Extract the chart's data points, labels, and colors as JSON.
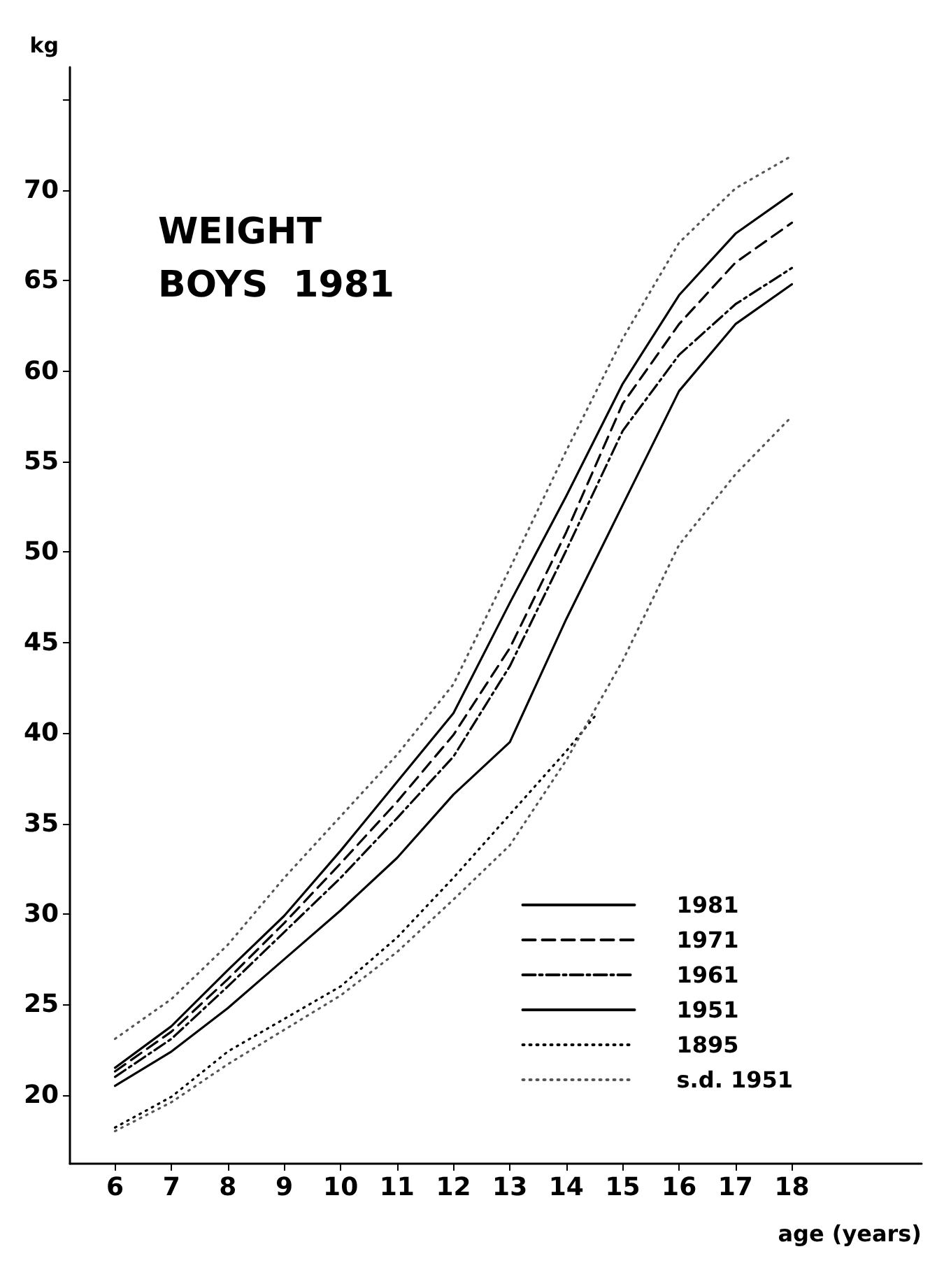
{
  "chart_data": {
    "type": "line",
    "title": "WEIGHT",
    "subtitle": "BOYS  1981",
    "xlabel": "age (years)",
    "ylabel": "kg",
    "x": [
      6,
      7,
      8,
      9,
      10,
      11,
      12,
      13,
      14,
      15,
      16,
      17,
      18
    ],
    "xlim": [
      5.2,
      20.3
    ],
    "xticks": [
      6,
      7,
      8,
      9,
      10,
      11,
      12,
      13,
      14,
      15,
      16,
      17,
      18
    ],
    "ylim": [
      16.2,
      76.8
    ],
    "yticks": [
      20,
      25,
      30,
      35,
      40,
      45,
      50,
      55,
      60,
      65,
      70,
      {
        "value": 75,
        "label": null
      }
    ],
    "legend": "bottom right",
    "marker": "none",
    "series": [
      {
        "name": "1981",
        "color": "#000000",
        "line_style": "solid",
        "values": [
          21.5,
          23.8,
          26.9,
          29.9,
          33.5,
          37.3,
          41.1,
          47.2,
          53.1,
          59.3,
          64.2,
          67.6,
          69.8
        ]
      },
      {
        "name": "1971",
        "color": "#000000",
        "line_style": "dashed",
        "values": [
          21.3,
          23.5,
          26.4,
          29.5,
          32.8,
          36.2,
          39.9,
          44.7,
          51.1,
          58.2,
          62.6,
          66.0,
          68.2
        ]
      },
      {
        "name": "1961",
        "color": "#000000",
        "line_style": "dashdot",
        "values": [
          21.0,
          23.1,
          26.0,
          29.0,
          32.0,
          35.3,
          38.7,
          43.7,
          50.1,
          56.7,
          60.9,
          63.7,
          65.7
        ]
      },
      {
        "name": "1951",
        "color": "#000000",
        "line_style": "solid",
        "values": [
          20.5,
          22.4,
          24.8,
          27.5,
          30.2,
          33.1,
          36.6,
          39.5,
          46.3,
          52.6,
          58.9,
          62.6,
          64.8
        ]
      },
      {
        "name": "1895",
        "color": "#000000",
        "line_style": "dotted",
        "x": [
          6,
          7,
          8,
          9,
          10,
          11,
          12,
          13,
          14,
          14.5
        ],
        "values": [
          18.2,
          19.9,
          22.4,
          24.2,
          26.0,
          28.7,
          32.0,
          35.5,
          39.0,
          40.9
        ]
      },
      {
        "name": "s.d. 1951",
        "color": "#555555",
        "line_style": "dotted",
        "values": [
          23.1,
          25.3,
          28.3,
          32.0,
          35.4,
          38.8,
          42.7,
          49.1,
          55.6,
          61.8,
          67.1,
          70.1,
          71.9
        ]
      },
      {
        "color": "#555555",
        "line_style": "dotted",
        "values": [
          18.0,
          19.6,
          21.7,
          23.6,
          25.5,
          27.9,
          30.8,
          33.8,
          38.5,
          44.0,
          50.4,
          54.3,
          57.5
        ]
      }
    ]
  }
}
